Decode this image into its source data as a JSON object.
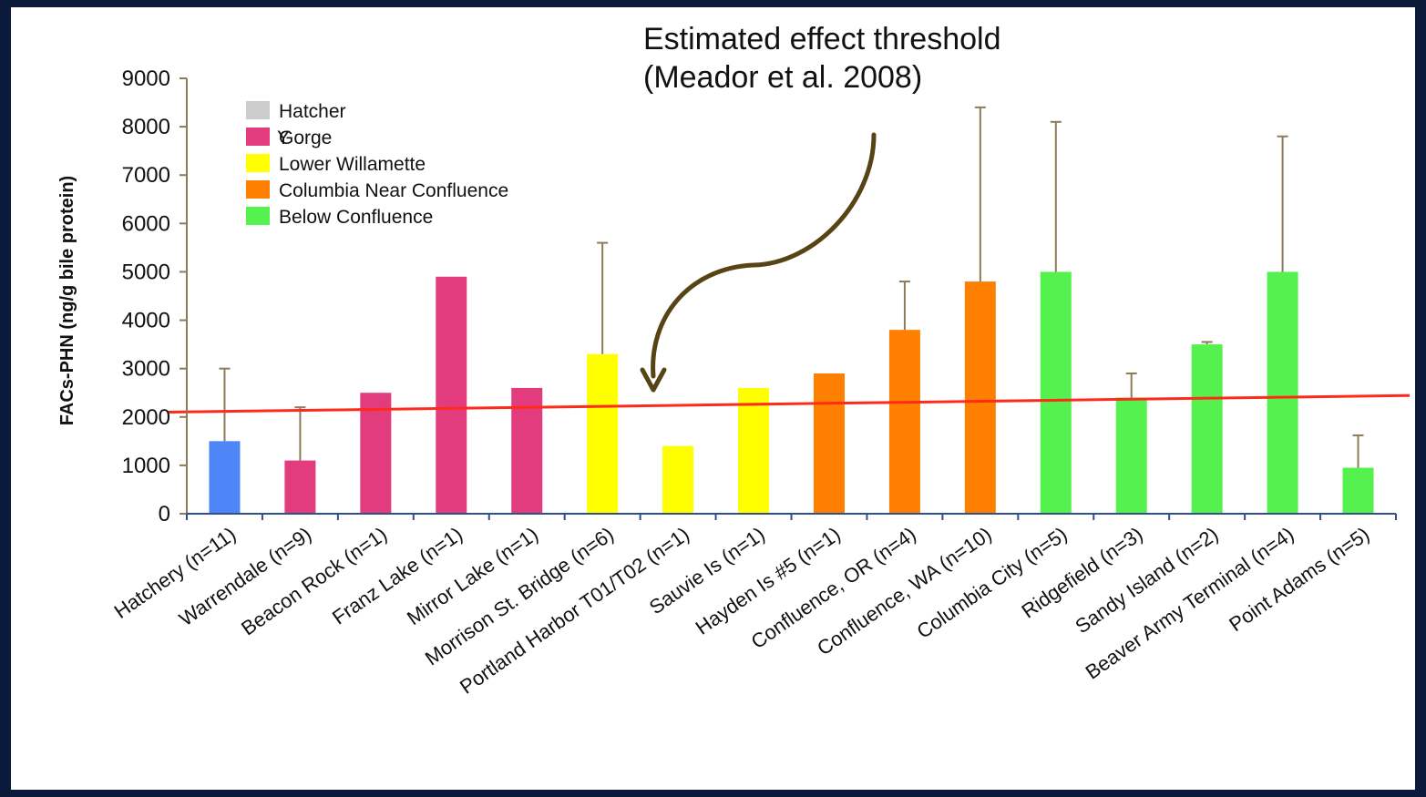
{
  "chart_data": {
    "type": "bar",
    "ylabel": "FACs-PHN (ng/g bile protein)",
    "ylim": [
      0,
      9000
    ],
    "yticks": [
      0,
      1000,
      2000,
      3000,
      4000,
      5000,
      6000,
      7000,
      8000,
      9000
    ],
    "grid": false,
    "categories": [
      "Hatchery (n=11)",
      "Warrendale (n=9)",
      "Beacon Rock (n=1)",
      "Franz Lake (n=1)",
      "Mirror Lake (n=1)",
      "Morrison St. Bridge (n=6)",
      "Portland Harbor T01/T02 (n=1)",
      "Sauvie Is (n=1)",
      "Hayden Is #5 (n=1)",
      "Confluence, OR (n=4)",
      "Confluence, WA (n=10)",
      "Columbia City (n=5)",
      "Ridgefield (n=3)",
      "Sandy Island (n=2)",
      "Beaver Army Terminal (n=4)",
      "Point Adams (n=5)"
    ],
    "values": [
      1500,
      1100,
      2500,
      4900,
      2600,
      3300,
      1400,
      2600,
      2900,
      3800,
      4800,
      5000,
      2400,
      3500,
      5000,
      950
    ],
    "error_upper": [
      3000,
      2200,
      null,
      null,
      null,
      5600,
      null,
      null,
      null,
      4800,
      8400,
      8100,
      2900,
      3550,
      7800,
      1620
    ],
    "groups": [
      0,
      1,
      1,
      1,
      1,
      2,
      2,
      2,
      3,
      3,
      3,
      4,
      4,
      4,
      4,
      4
    ],
    "legend": {
      "placement": "top-left",
      "entries": [
        {
          "label": "Hatcher",
          "color": "#cccccc"
        },
        {
          "label": "Gorge",
          "color": "#e23c7e"
        },
        {
          "label": "Lower Willamette",
          "color": "#ffff00"
        },
        {
          "label": "Columbia Near Confluence",
          "color": "#ff8000"
        },
        {
          "label": "Below Confluence",
          "color": "#55f24f"
        }
      ],
      "stray_glyph": "Y"
    },
    "bar_colors": [
      "#4e86f7",
      "#e23c7e",
      "#ffff00",
      "#ff8000",
      "#55f24f"
    ],
    "threshold": {
      "value_start": 2250,
      "value_end": 2500,
      "color": "#ff2a1a"
    },
    "annotation": {
      "line1": "Estimated effect threshold",
      "line2": "(Meador et al. 2008)"
    }
  }
}
